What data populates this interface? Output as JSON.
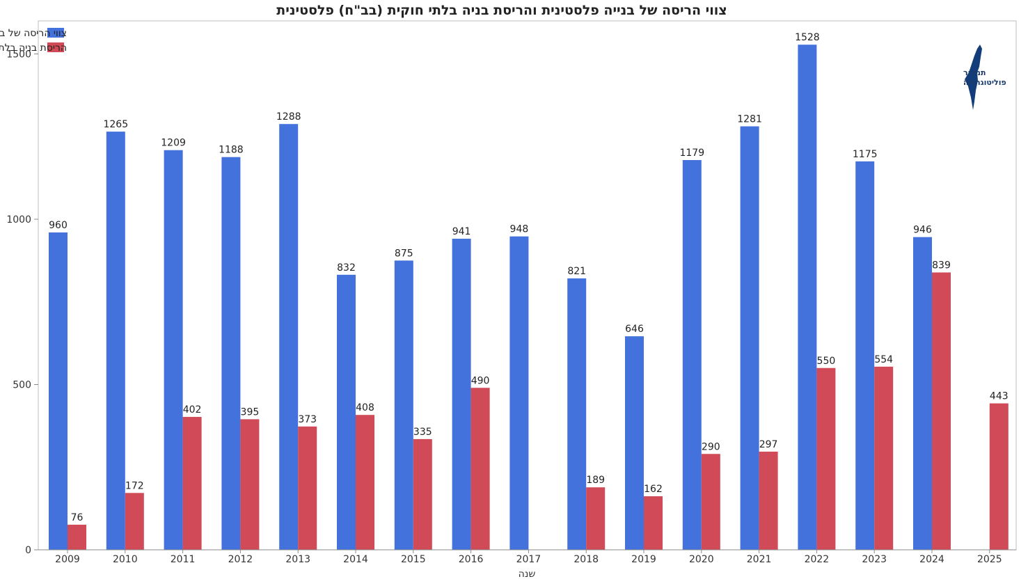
{
  "chart_data": {
    "type": "bar",
    "title": "צווי הריסה של בנייה פלסטינית והריסת בניה בלתי חוקית (בב\"ח) פלסטינית",
    "xlabel": "שנה",
    "ylabel": "",
    "ylim": [
      0,
      1600
    ],
    "yticks": [
      0,
      500,
      1000,
      1500
    ],
    "grid": false,
    "legend_position": "top-left",
    "categories": [
      "2009",
      "2010",
      "2011",
      "2012",
      "2013",
      "2014",
      "2015",
      "2016",
      "2017",
      "2018",
      "2019",
      "2020",
      "2021",
      "2022",
      "2023",
      "2024",
      "2025"
    ],
    "series": [
      {
        "name": "צווי הריסה של בנייה פלסטינית",
        "color": "#4472dc",
        "values": [
          960,
          1265,
          1209,
          1188,
          1288,
          832,
          875,
          941,
          948,
          821,
          646,
          1179,
          1281,
          1528,
          1175,
          946,
          null
        ]
      },
      {
        "name": "הריסת בניה בלתי חוקית (בב\"ח) פלסטינית",
        "color": "#d14a57",
        "values": [
          76,
          172,
          402,
          395,
          373,
          408,
          335,
          490,
          null,
          189,
          162,
          290,
          297,
          550,
          554,
          839,
          443
        ]
      }
    ]
  },
  "logo": {
    "line1": "תמרור",
    "line2": "פוליטוגרפיה",
    "icon": "israel-map-icon"
  }
}
